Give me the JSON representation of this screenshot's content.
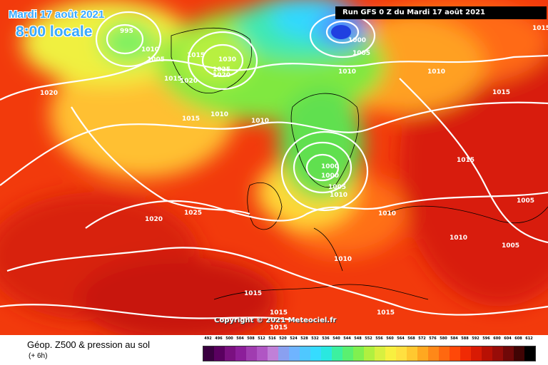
{
  "map": {
    "date_line": "Mardi 17 août 2021",
    "time_line": "8:00 locale",
    "run_info": "Run GFS 0 Z du Mardi 17 août 2021",
    "copyright": "Copyright © 2021 Meteociel.fr",
    "pressure_labels": [
      "995",
      "1010",
      "1005",
      "1015",
      "1030",
      "1025",
      "1020",
      "1020",
      "1015",
      "1010",
      "1010",
      "1010",
      "1000",
      "1005",
      "1010",
      "1015",
      "1015",
      "1000",
      "1000",
      "1005",
      "1010",
      "1025",
      "1020",
      "1015",
      "1010",
      "1010",
      "1005",
      "1005",
      "1010",
      "1015",
      "1015",
      "1015",
      "1015",
      "1020",
      "1015"
    ]
  },
  "legend": {
    "title": "Géop. Z500 & pression au sol",
    "subtitle": "(+ 6h)",
    "scale_values": [
      "492",
      "496",
      "500",
      "504",
      "508",
      "512",
      "516",
      "520",
      "524",
      "528",
      "532",
      "536",
      "540",
      "544",
      "548",
      "552",
      "556",
      "560",
      "564",
      "568",
      "572",
      "576",
      "580",
      "584",
      "588",
      "592",
      "596",
      "600",
      "604",
      "608",
      "612"
    ],
    "scale_colors": [
      "#3a0040",
      "#5a0060",
      "#7a1080",
      "#8c1e9a",
      "#a03cb0",
      "#b056c4",
      "#c080d8",
      "#8aa0f0",
      "#6fb4ff",
      "#4fc8ff",
      "#36dcff",
      "#2ae8e0",
      "#3cf0a0",
      "#5af070",
      "#80f050",
      "#b0f040",
      "#d8f040",
      "#f8f040",
      "#ffe040",
      "#ffc830",
      "#ffa820",
      "#ff8818",
      "#ff6810",
      "#ff4808",
      "#f02a04",
      "#d81a04",
      "#b81004",
      "#980c08",
      "#700808",
      "#400404",
      "#000000"
    ]
  }
}
